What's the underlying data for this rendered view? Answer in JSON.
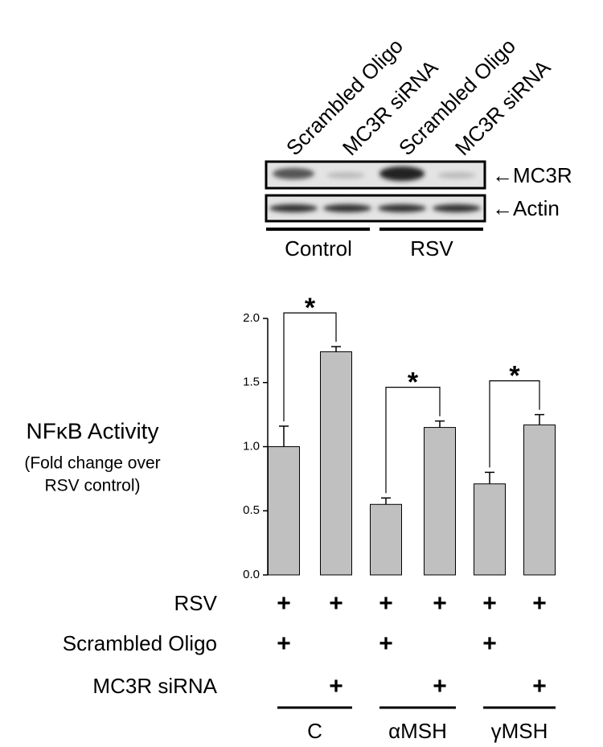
{
  "blot": {
    "lanes": [
      "Scrambled Oligo",
      "MC3R siRNA",
      "Scrambled Oligo",
      "MC3R siRNA"
    ],
    "bands": [
      "←MC3R",
      "←Actin"
    ],
    "groups": [
      "Control",
      "RSV"
    ]
  },
  "chart_data": {
    "type": "bar",
    "y_label": [
      "NFκB Activity",
      "(Fold change over",
      "RSV control)"
    ],
    "values": [
      1.0,
      1.74,
      0.55,
      1.15,
      0.71,
      1.17
    ],
    "errors": [
      0.16,
      0.04,
      0.05,
      0.05,
      0.09,
      0.08
    ],
    "color": "#c0c0c0",
    "ylim": [
      0,
      2.0
    ],
    "yticks": [
      {
        "value": 0,
        "label": "0.0"
      },
      {
        "value": 0.5,
        "label": "0.5"
      },
      {
        "value": 1.0,
        "label": "1.0"
      },
      {
        "value": 1.5,
        "label": "1.5"
      },
      {
        "value": 2.0,
        "label": "2.0"
      }
    ],
    "annotations": [
      {
        "label": "*",
        "pair": [
          0,
          1
        ]
      },
      {
        "label": "*",
        "pair": [
          2,
          3
        ]
      },
      {
        "label": "*",
        "pair": [
          4,
          5
        ]
      }
    ],
    "conditions": [
      {
        "label": "RSV",
        "marks": [
          "+",
          "+",
          "+",
          "+",
          "+",
          "+"
        ]
      },
      {
        "label": "Scrambled Oligo",
        "marks": [
          "+",
          null,
          "+",
          null,
          "+",
          null
        ]
      },
      {
        "label": "MC3R siRNA",
        "marks": [
          null,
          "+",
          null,
          "+",
          null,
          "+"
        ]
      }
    ],
    "groups": [
      "C",
      "αMSH",
      "γMSH"
    ]
  }
}
